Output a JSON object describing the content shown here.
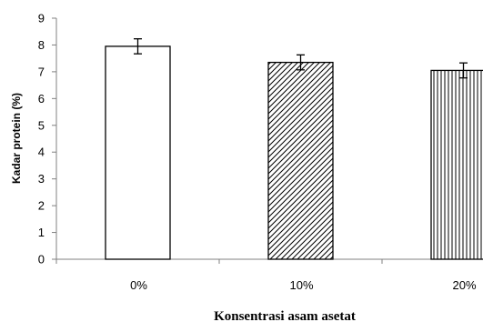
{
  "chart_data": {
    "type": "bar",
    "categories": [
      "0%",
      "10%",
      "20%"
    ],
    "values": [
      7.95,
      7.35,
      7.05
    ],
    "error": [
      0.28,
      0.28,
      0.28
    ],
    "patterns": [
      "none",
      "diagonal",
      "vertical"
    ],
    "xlabel": "Konsentrasi asam asetat",
    "ylabel": "Kadar protein (%)",
    "ylim": [
      0,
      9
    ],
    "yticks": [
      "0",
      "1",
      "2",
      "3",
      "4",
      "5",
      "6",
      "7",
      "8",
      "9"
    ],
    "grid": false,
    "legend": "none",
    "colors": {
      "bar_fill": "#ffffff",
      "bar_stroke": "#000000",
      "hatch": "#000000",
      "axis": "#808080"
    }
  }
}
